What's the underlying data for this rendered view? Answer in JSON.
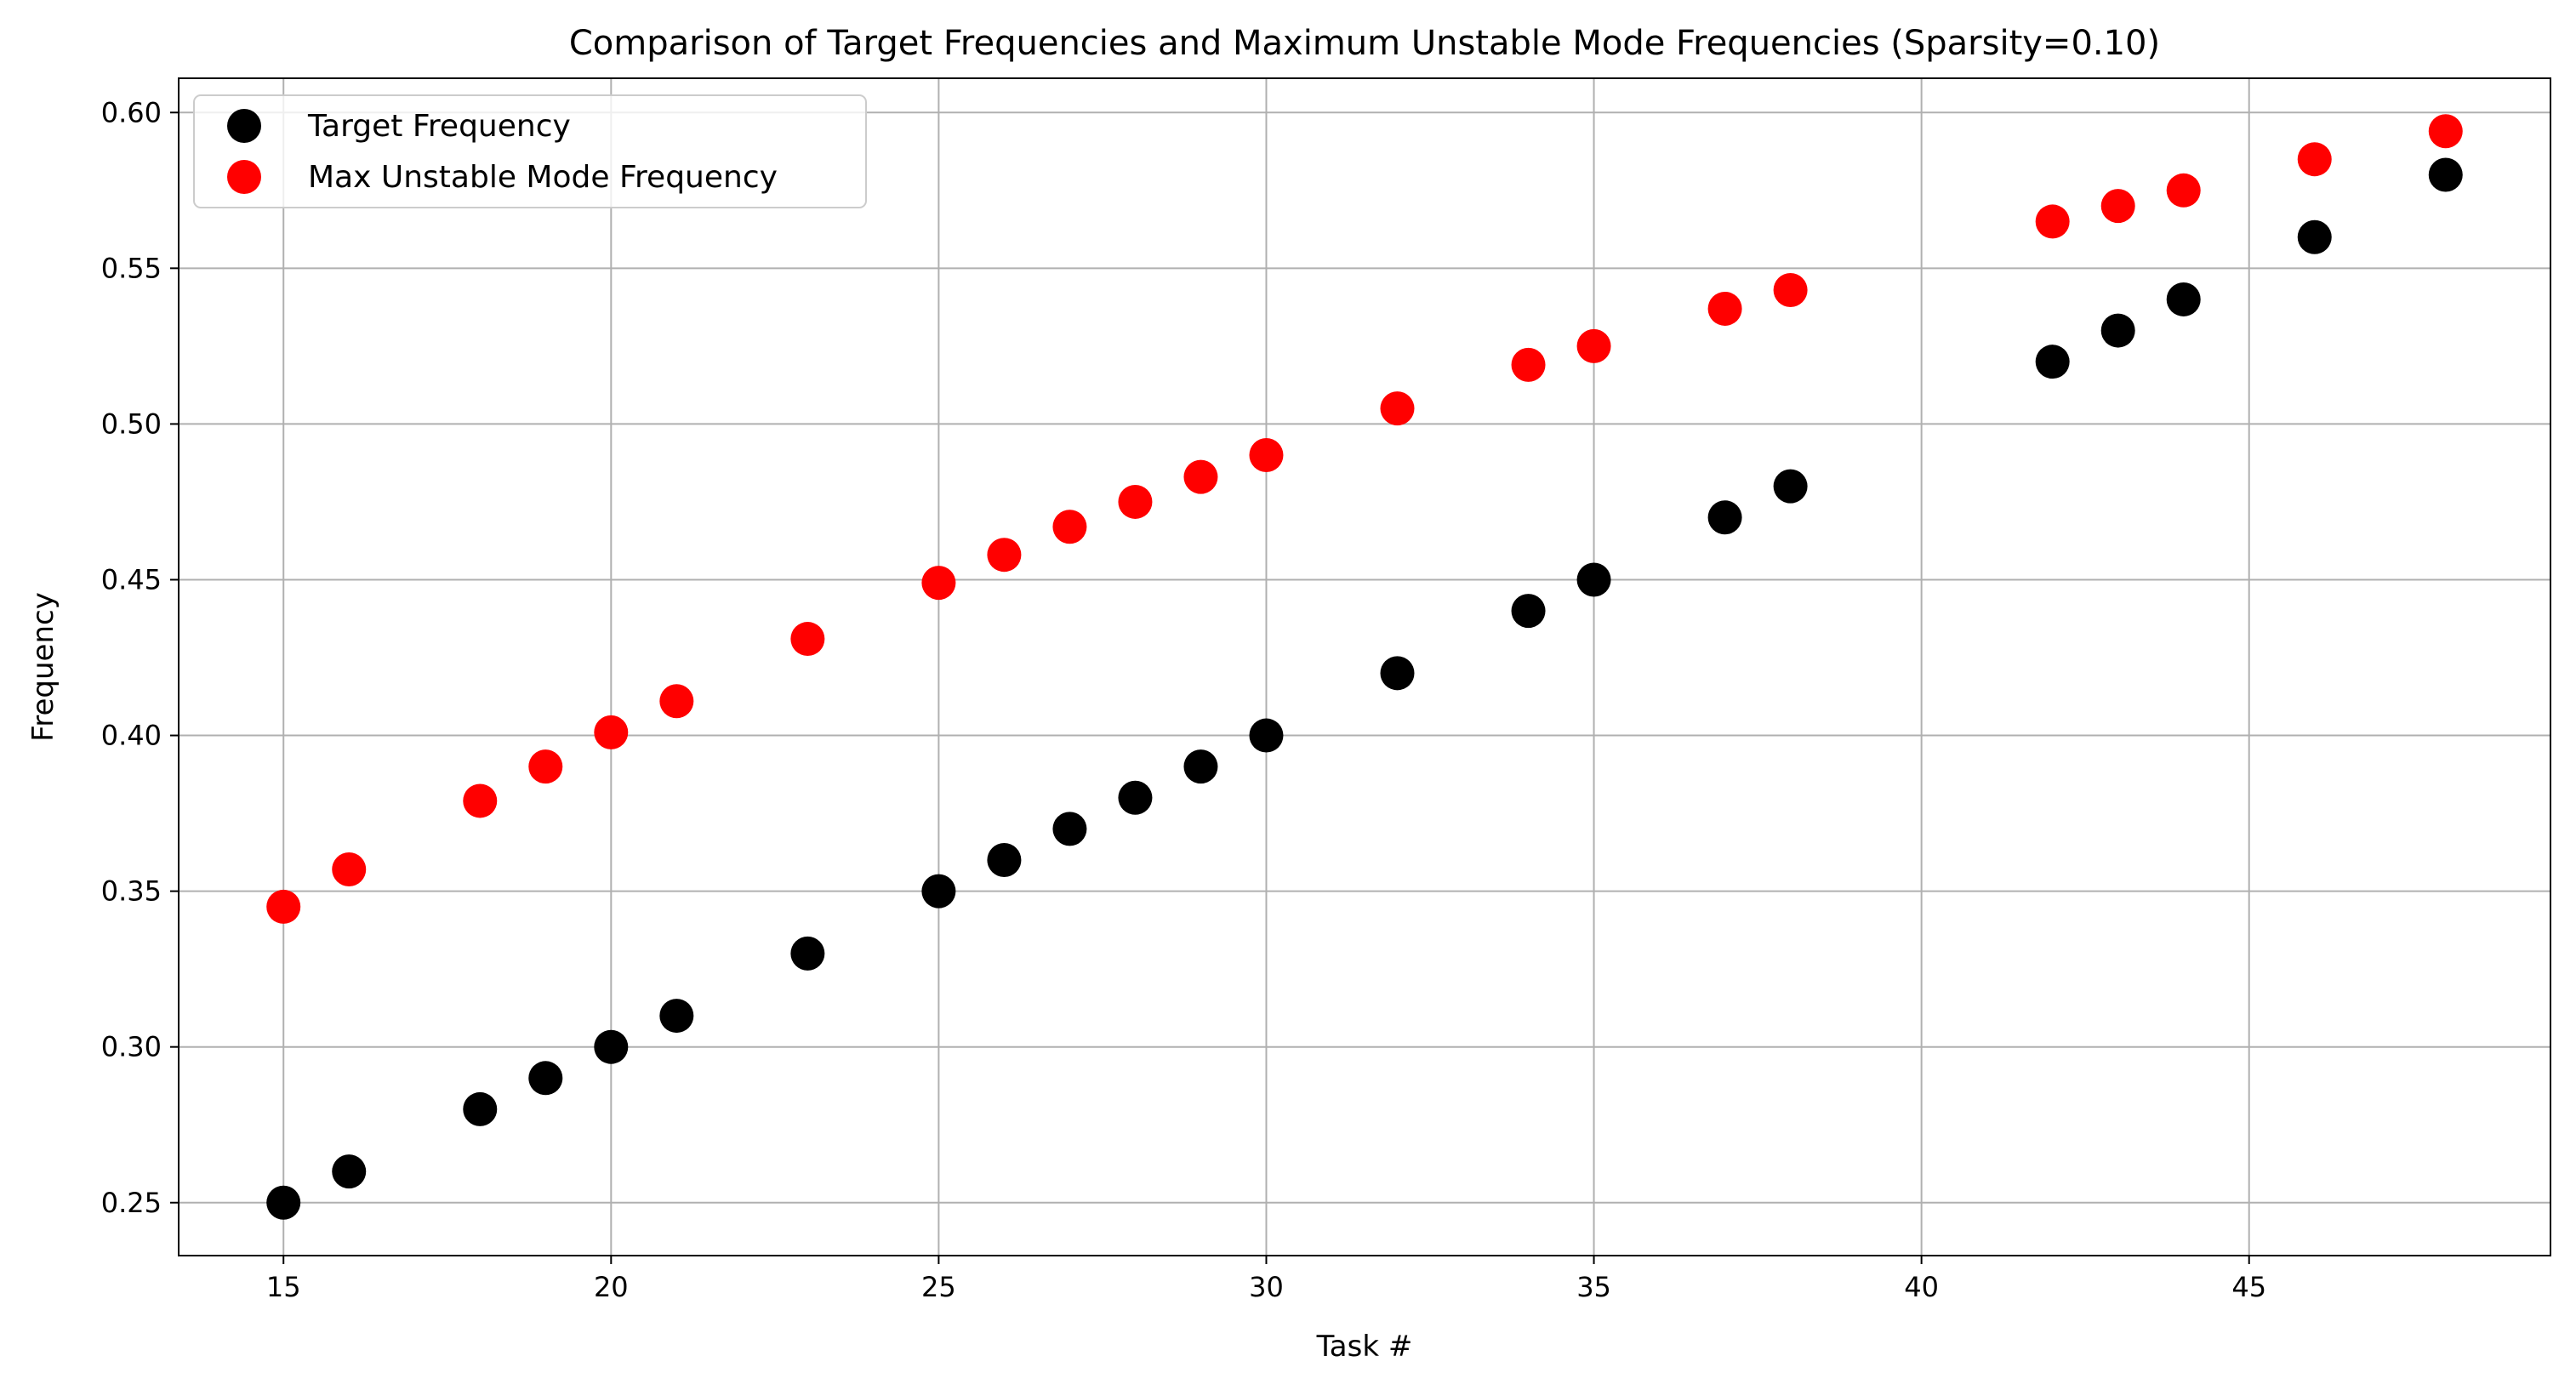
{
  "chart_data": {
    "type": "scatter",
    "title": "Comparison of Target Frequencies and Maximum Unstable Mode Frequencies (Sparsity=0.10)",
    "xlabel": "Task #",
    "ylabel": "Frequency",
    "xlim": [
      13.4,
      49.6
    ],
    "ylim": [
      0.233,
      0.611
    ],
    "xticks": [
      15,
      20,
      25,
      30,
      35,
      40,
      45
    ],
    "yticks": [
      0.25,
      0.3,
      0.35,
      0.4,
      0.45,
      0.5,
      0.55,
      0.6
    ],
    "xtick_labels": [
      "15",
      "20",
      "25",
      "30",
      "35",
      "40",
      "45"
    ],
    "ytick_labels": [
      "0.25",
      "0.30",
      "0.35",
      "0.40",
      "0.45",
      "0.50",
      "0.55",
      "0.60"
    ],
    "grid": true,
    "legend_position": "top-left",
    "x": [
      15,
      16,
      18,
      19,
      20,
      21,
      23,
      25,
      26,
      27,
      28,
      29,
      30,
      32,
      34,
      35,
      37,
      38,
      42,
      43,
      44,
      46,
      48
    ],
    "series": [
      {
        "name": "Target Frequency",
        "color": "#000000",
        "values": [
          0.25,
          0.26,
          0.28,
          0.29,
          0.3,
          0.31,
          0.33,
          0.35,
          0.36,
          0.37,
          0.38,
          0.39,
          0.4,
          0.42,
          0.44,
          0.45,
          0.47,
          0.48,
          0.52,
          0.53,
          0.54,
          0.56,
          0.58
        ]
      },
      {
        "name": "Max Unstable Mode Frequency",
        "color": "#ff0000",
        "values": [
          0.345,
          0.357,
          0.379,
          0.39,
          0.401,
          0.411,
          0.431,
          0.449,
          0.458,
          0.467,
          0.475,
          0.483,
          0.49,
          0.505,
          0.519,
          0.525,
          0.537,
          0.543,
          0.565,
          0.57,
          0.575,
          0.585,
          0.594
        ]
      }
    ]
  }
}
